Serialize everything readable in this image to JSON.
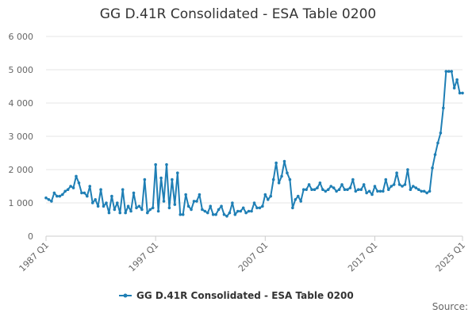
{
  "chart_data": {
    "type": "line",
    "title": "GG D.41R Consolidated - ESA Table 0200",
    "xlabel": "",
    "ylabel": "",
    "ylim": [
      0,
      6000
    ],
    "yticks": [
      0,
      1000,
      2000,
      3000,
      4000,
      5000,
      6000
    ],
    "ytick_labels": [
      "0",
      "1 000",
      "2 000",
      "3 000",
      "4 000",
      "5 000",
      "6 000"
    ],
    "xtick_labels": [
      "1987 Q1",
      "1997 Q1",
      "2007 Q1",
      "2017 Q1",
      "2025 Q1"
    ],
    "xtick_index": [
      0,
      40,
      80,
      120,
      152
    ],
    "grid": true,
    "legend": "bottom",
    "series_color": "#1f7fb5",
    "series": [
      {
        "name": "GG D.41R Consolidated - ESA Table 0200",
        "values": [
          1150,
          1100,
          1050,
          1300,
          1200,
          1200,
          1250,
          1350,
          1400,
          1500,
          1450,
          1800,
          1600,
          1300,
          1300,
          1200,
          1500,
          1000,
          1100,
          900,
          1400,
          900,
          1000,
          700,
          1200,
          800,
          1000,
          700,
          1400,
          700,
          900,
          750,
          1300,
          850,
          900,
          800,
          1700,
          700,
          800,
          850,
          2150,
          750,
          1750,
          1050,
          2150,
          850,
          1700,
          950,
          1900,
          650,
          650,
          1250,
          900,
          800,
          1050,
          1050,
          1250,
          800,
          750,
          700,
          900,
          650,
          650,
          800,
          900,
          650,
          600,
          700,
          1000,
          650,
          750,
          750,
          850,
          700,
          750,
          750,
          1000,
          850,
          850,
          900,
          1250,
          1100,
          1200,
          1700,
          2200,
          1600,
          1800,
          2250,
          1900,
          1700,
          850,
          1100,
          1200,
          1050,
          1400,
          1400,
          1550,
          1400,
          1400,
          1450,
          1600,
          1400,
          1350,
          1400,
          1500,
          1450,
          1350,
          1400,
          1550,
          1400,
          1400,
          1450,
          1700,
          1350,
          1400,
          1400,
          1550,
          1300,
          1350,
          1250,
          1500,
          1350,
          1350,
          1350,
          1700,
          1400,
          1500,
          1550,
          1900,
          1550,
          1500,
          1550,
          2000,
          1400,
          1500,
          1450,
          1400,
          1350,
          1350,
          1300,
          1350,
          2050,
          2450,
          2800,
          3100,
          3850,
          4950,
          4950,
          4950,
          4450,
          4700,
          4300,
          4300
        ]
      }
    ]
  },
  "footer": {
    "source_label": "Source:"
  }
}
